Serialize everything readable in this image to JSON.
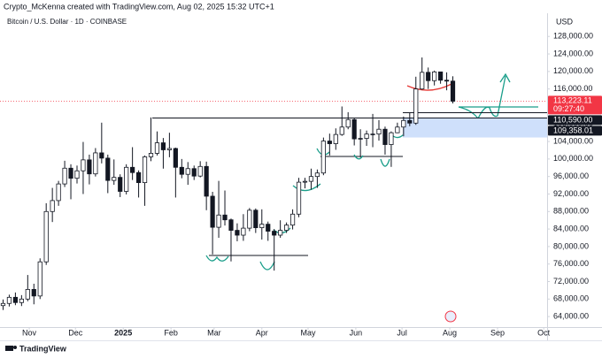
{
  "header": {
    "credit": "Crypto_McKenna created with TradingView.com, Aug 02, 2025 15:32 UTC+1",
    "footer": "TradingView"
  },
  "chart_data": {
    "type": "candlestick",
    "title": "Bitcoin / U.S. Dollar · 1D · COINBASE",
    "y_axis_label": "USD",
    "up_color": "#ffffff",
    "down_color": "#131722",
    "border_color": "#131722",
    "grid": false,
    "xlim": [
      -0.5,
      88.3
    ],
    "ylim": [
      61600,
      133300
    ],
    "xticks": [
      {
        "value": 4.25,
        "label": "Nov"
      },
      {
        "value": 11.75,
        "label": "Dec"
      },
      {
        "value": 19.5,
        "label": "2025"
      },
      {
        "value": 27.25,
        "label": "Feb"
      },
      {
        "value": 34.25,
        "label": "Mar"
      },
      {
        "value": 42,
        "label": "Apr"
      },
      {
        "value": 49.5,
        "label": "May"
      },
      {
        "value": 57.25,
        "label": "Jun"
      },
      {
        "value": 64.75,
        "label": "Jul"
      },
      {
        "value": 72.5,
        "label": "Aug"
      },
      {
        "value": 80.25,
        "label": "Sep"
      },
      {
        "value": 87.75,
        "label": "Oct"
      }
    ],
    "yticks": [
      {
        "value": 64000,
        "label": "64,000.00"
      },
      {
        "value": 68000,
        "label": "68,000.00"
      },
      {
        "value": 72000,
        "label": "72,000.00"
      },
      {
        "value": 76000,
        "label": "76,000.00"
      },
      {
        "value": 80000,
        "label": "80,000.00"
      },
      {
        "value": 84000,
        "label": "84,000.00"
      },
      {
        "value": 88000,
        "label": "88,000.00"
      },
      {
        "value": 92000,
        "label": "92,000.00"
      },
      {
        "value": 96000,
        "label": "96,000.00"
      },
      {
        "value": 100000,
        "label": "100,000.00"
      },
      {
        "value": 104000,
        "label": "104,000.00"
      },
      {
        "value": 108000,
        "label": "108,000.00"
      },
      {
        "value": 112000,
        "label": "112,000.00"
      },
      {
        "value": 116000,
        "label": "116,000.00"
      },
      {
        "value": 120000,
        "label": "120,000.00"
      },
      {
        "value": 124000,
        "label": "124,000.00"
      },
      {
        "value": 128000,
        "label": "128,000.00"
      }
    ],
    "open": [
      66500,
      67000,
      68400,
      67200,
      68000,
      70200,
      68700,
      76500,
      88000,
      90500,
      94300,
      97900,
      95600,
      97300,
      99800,
      96600,
      101400,
      100200,
      95100,
      95800,
      92600,
      98100,
      96900,
      94600,
      100500,
      101300,
      103700,
      102100,
      102400,
      98100,
      96500,
      97800,
      96100,
      98300,
      91500,
      84400,
      87200,
      86100,
      83700,
      82600,
      84200,
      88300,
      84300,
      85100,
      83500,
      82600,
      83700,
      84900,
      87400,
      94700,
      94900,
      96000,
      96800,
      104100,
      103500,
      105600,
      107300,
      109000,
      104600,
      104700,
      105700,
      105700,
      106800,
      103300,
      106000,
      107300,
      108800,
      108200,
      116000,
      119800,
      117900,
      119900,
      118000,
      117800
    ],
    "high": [
      67900,
      69000,
      69500,
      68900,
      73500,
      71500,
      77300,
      89900,
      93400,
      95000,
      99600,
      98800,
      98500,
      103900,
      101000,
      102500,
      108300,
      101000,
      99900,
      96500,
      98800,
      102700,
      97400,
      100800,
      109500,
      106300,
      104800,
      106000,
      102600,
      100000,
      99300,
      98500,
      99500,
      99400,
      92500,
      95000,
      92800,
      86400,
      85300,
      87400,
      88800,
      88700,
      88500,
      85700,
      84000,
      86000,
      85500,
      88500,
      95700,
      95700,
      97800,
      97600,
      104900,
      105800,
      107000,
      112000,
      110700,
      109300,
      106800,
      106500,
      110300,
      108900,
      107400,
      106300,
      108300,
      109700,
      110500,
      118800,
      123200,
      120900,
      120200,
      119900,
      119800,
      118900
    ],
    "low": [
      65500,
      66300,
      66600,
      66400,
      67500,
      66800,
      68000,
      75800,
      85600,
      89300,
      93600,
      90800,
      94400,
      92000,
      94200,
      96000,
      99000,
      92200,
      94100,
      91300,
      91900,
      95200,
      91200,
      89300,
      99500,
      100800,
      97800,
      100400,
      91200,
      95600,
      94100,
      95200,
      95800,
      88300,
      78200,
      82000,
      84800,
      76600,
      81200,
      81300,
      83500,
      83100,
      81600,
      81300,
      74500,
      82000,
      83100,
      83900,
      86700,
      93300,
      93000,
      93400,
      96300,
      100800,
      102100,
      105300,
      106800,
      103100,
      100400,
      103000,
      102700,
      104200,
      101000,
      98200,
      105900,
      105200,
      107500,
      107800,
      115800,
      116000,
      116800,
      117200,
      115700,
      112700
    ],
    "close": [
      67000,
      68400,
      67200,
      68000,
      70200,
      68700,
      76500,
      88000,
      90500,
      94300,
      97900,
      95600,
      97300,
      99800,
      96600,
      101400,
      100200,
      95100,
      95800,
      92600,
      98100,
      96900,
      94600,
      100500,
      101300,
      103700,
      102100,
      102400,
      98100,
      96500,
      97800,
      96100,
      98300,
      91500,
      84400,
      87200,
      86100,
      83700,
      82600,
      84200,
      88300,
      84300,
      85100,
      83500,
      82600,
      83700,
      84900,
      87400,
      94700,
      94900,
      96000,
      96800,
      104100,
      103500,
      105600,
      107300,
      109000,
      104600,
      104700,
      105700,
      105700,
      106800,
      103300,
      106000,
      107300,
      108800,
      108200,
      116000,
      119800,
      117900,
      119900,
      118000,
      117800,
      113200
    ],
    "price_labels": [
      {
        "value": 113223.11,
        "label": "113,223.11",
        "sub": "09:27:40",
        "color": "#f23645"
      },
      {
        "value": 110590,
        "label": "110,590.00",
        "color": "#131722"
      },
      {
        "value": 109358.01,
        "label": "109,358.01",
        "color": "#131722"
      }
    ]
  }
}
